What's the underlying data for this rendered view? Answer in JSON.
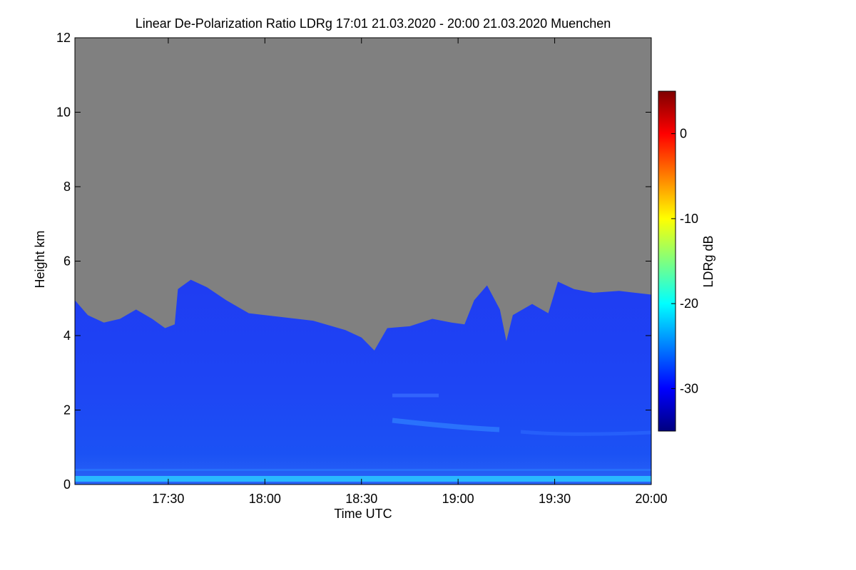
{
  "chart_data": {
    "type": "heatmap",
    "title": "Linear De-Polarization Ratio LDRg   17:01 21.03.2020 - 20:00 21.03.2020 Muenchen",
    "xlabel": "Time UTC",
    "ylabel": "Height km",
    "xlim_minutes": [
      1021,
      1200
    ],
    "ylim": [
      0,
      12
    ],
    "x_ticks": [
      {
        "minutes": 1050,
        "label": "17:30"
      },
      {
        "minutes": 1080,
        "label": "18:00"
      },
      {
        "minutes": 1110,
        "label": "18:30"
      },
      {
        "minutes": 1140,
        "label": "19:00"
      },
      {
        "minutes": 1170,
        "label": "19:30"
      },
      {
        "minutes": 1200,
        "label": "20:00"
      }
    ],
    "y_ticks": [
      0,
      2,
      4,
      6,
      8,
      10,
      12
    ],
    "no_data_color": "#808080",
    "colorbar": {
      "label": "LDRg dB",
      "range": [
        -35,
        5
      ],
      "ticks": [
        -30,
        -20,
        -10,
        0
      ],
      "colors": [
        "#00007f",
        "#0000ff",
        "#007fff",
        "#00ffff",
        "#7fff7f",
        "#ffff00",
        "#ff7f00",
        "#ff0000",
        "#7f0000"
      ]
    },
    "signal_top_km": [
      {
        "minutes": 1021,
        "km": 4.95
      },
      {
        "minutes": 1025,
        "km": 4.55
      },
      {
        "minutes": 1030,
        "km": 4.35
      },
      {
        "minutes": 1035,
        "km": 4.45
      },
      {
        "minutes": 1040,
        "km": 4.7
      },
      {
        "minutes": 1045,
        "km": 4.45
      },
      {
        "minutes": 1049,
        "km": 4.2
      },
      {
        "minutes": 1052,
        "km": 4.3
      },
      {
        "minutes": 1053,
        "km": 5.25
      },
      {
        "minutes": 1057,
        "km": 5.5
      },
      {
        "minutes": 1062,
        "km": 5.3
      },
      {
        "minutes": 1068,
        "km": 4.95
      },
      {
        "minutes": 1075,
        "km": 4.6
      },
      {
        "minutes": 1085,
        "km": 4.5
      },
      {
        "minutes": 1095,
        "km": 4.4
      },
      {
        "minutes": 1105,
        "km": 4.15
      },
      {
        "minutes": 1110,
        "km": 3.95
      },
      {
        "minutes": 1114,
        "km": 3.6
      },
      {
        "minutes": 1118,
        "km": 4.2
      },
      {
        "minutes": 1125,
        "km": 4.25
      },
      {
        "minutes": 1132,
        "km": 4.45
      },
      {
        "minutes": 1138,
        "km": 4.35
      },
      {
        "minutes": 1142,
        "km": 4.3
      },
      {
        "minutes": 1145,
        "km": 4.95
      },
      {
        "minutes": 1149,
        "km": 5.35
      },
      {
        "minutes": 1153,
        "km": 4.7
      },
      {
        "minutes": 1155,
        "km": 3.85
      },
      {
        "minutes": 1157,
        "km": 4.55
      },
      {
        "minutes": 1163,
        "km": 4.85
      },
      {
        "minutes": 1168,
        "km": 4.6
      },
      {
        "minutes": 1171,
        "km": 5.45
      },
      {
        "minutes": 1176,
        "km": 5.25
      },
      {
        "minutes": 1182,
        "km": 5.15
      },
      {
        "minutes": 1190,
        "km": 5.2
      },
      {
        "minutes": 1200,
        "km": 5.1
      }
    ],
    "typical_ldr_db": -32
  }
}
